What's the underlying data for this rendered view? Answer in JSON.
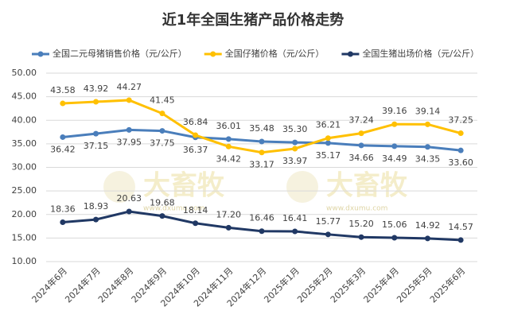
{
  "chart_data": {
    "type": "line",
    "title": "近1年全国生猪产品价格走势",
    "watermark": {
      "text": "大畜牧",
      "url": "www.dxumu.com"
    },
    "categories": [
      "2024年6月",
      "2024年7月",
      "2024年8月",
      "2024年9月",
      "2024年10月",
      "2024年11月",
      "2024年12月",
      "2025年1月",
      "2025年2月",
      "2025年3月",
      "2025年4月",
      "2025年5月",
      "2025年6月"
    ],
    "series": [
      {
        "name": "全国二元母猪销售价格（元/公斤）",
        "color": "#4a7ebb",
        "values": [
          36.42,
          37.15,
          37.95,
          37.75,
          36.37,
          36.01,
          35.48,
          35.3,
          35.17,
          34.66,
          34.49,
          34.35,
          33.6
        ],
        "value_labels": [
          "36.42",
          "37.15",
          "37.95",
          "37.75",
          "36.37",
          "36.01",
          "35.48",
          "35.30",
          "35.17",
          "34.66",
          "34.49",
          "34.35",
          "33.60"
        ]
      },
      {
        "name": "全国仔猪价格（元/公斤）",
        "color": "#ffc000",
        "values": [
          43.58,
          43.92,
          44.27,
          41.45,
          36.84,
          34.42,
          33.17,
          33.97,
          36.21,
          37.24,
          39.16,
          39.14,
          37.25
        ],
        "value_labels": [
          "43.58",
          "43.92",
          "44.27",
          "41.45",
          "36.84",
          "34.42",
          "33.17",
          "33.97",
          "36.21",
          "37.24",
          "39.16",
          "39.14",
          "37.25"
        ]
      },
      {
        "name": "全国生猪出场价格（元/公斤）",
        "color": "#203864",
        "values": [
          18.36,
          18.93,
          20.63,
          19.68,
          18.14,
          17.2,
          16.46,
          16.41,
          15.77,
          15.2,
          15.06,
          14.92,
          14.57
        ],
        "value_labels": [
          "18.36",
          "18.93",
          "20.63",
          "19.68",
          "18.14",
          "17.20",
          "16.46",
          "16.41",
          "15.77",
          "15.20",
          "15.06",
          "14.92",
          "14.57"
        ]
      }
    ],
    "ylim": [
      10,
      50
    ],
    "yticks": [
      {
        "value": 10,
        "label": "10.00"
      },
      {
        "value": 15,
        "label": "15.00"
      },
      {
        "value": 20,
        "label": "20.00"
      },
      {
        "value": 25,
        "label": "25.00"
      },
      {
        "value": 30,
        "label": "30.00"
      },
      {
        "value": 35,
        "label": "35.00"
      },
      {
        "value": 40,
        "label": "40.00"
      },
      {
        "value": 45,
        "label": "45.00"
      },
      {
        "value": 50,
        "label": "50.00"
      }
    ],
    "grid": true
  }
}
